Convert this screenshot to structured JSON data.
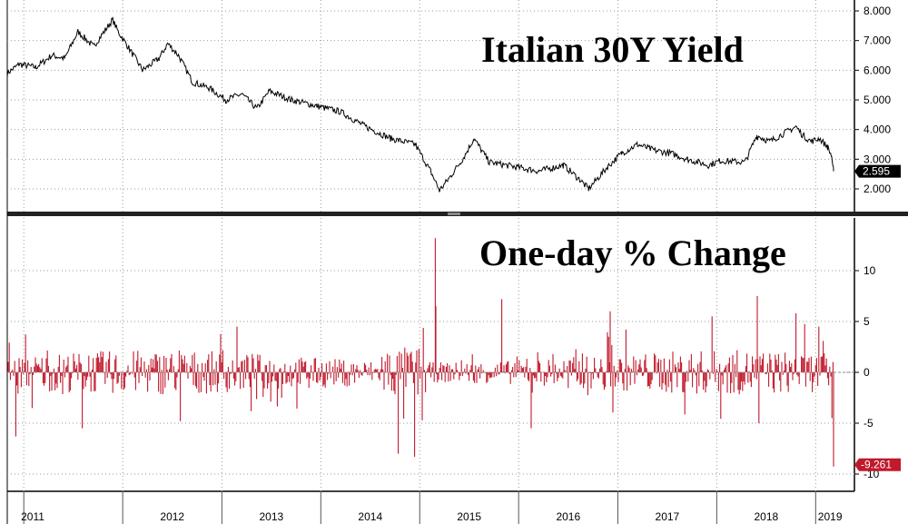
{
  "chart_data": [
    {
      "type": "line",
      "title": "Italian 30Y Yield",
      "x_range": [
        "2010-11-01",
        "2019-03-08"
      ],
      "ylim": [
        1.5,
        8.1
      ],
      "yticks": [
        2.0,
        3.0,
        4.0,
        5.0,
        6.0,
        7.0,
        8.0
      ],
      "ytick_labels": [
        "2.000",
        "3.000",
        "4.000",
        "5.000",
        "6.000",
        "7.000",
        "8.000"
      ],
      "grid": true,
      "axis_side": "right",
      "line_color": "#000000",
      "last_value_label": "2.595",
      "series": [
        {
          "x": [
            "2010-11-01",
            "2010-12-15",
            "2011-02-15",
            "2011-04-15",
            "2011-06-01",
            "2011-07-20",
            "2011-09-15",
            "2011-11-25",
            "2011-12-15",
            "2012-01-20",
            "2012-03-15",
            "2012-05-15",
            "2012-06-15",
            "2012-07-25",
            "2012-09-15",
            "2012-11-15",
            "2013-01-15",
            "2013-03-15",
            "2013-05-10",
            "2013-06-25",
            "2013-09-15",
            "2013-12-15",
            "2014-03-15",
            "2014-06-15",
            "2014-09-15",
            "2014-12-15",
            "2015-02-10",
            "2015-03-15",
            "2015-04-15",
            "2015-06-15",
            "2015-07-20",
            "2015-09-15",
            "2015-12-15",
            "2016-03-15",
            "2016-06-15",
            "2016-08-15",
            "2016-09-15",
            "2016-11-25",
            "2017-01-15",
            "2017-03-15",
            "2017-05-15",
            "2017-07-15",
            "2017-09-15",
            "2017-12-01",
            "2018-01-15",
            "2018-04-15",
            "2018-05-29",
            "2018-07-15",
            "2018-10-20",
            "2018-11-15",
            "2018-12-15",
            "2019-01-15",
            "2019-02-15",
            "2019-03-01",
            "2019-03-08"
          ],
          "values": [
            5.9,
            6.2,
            6.1,
            6.5,
            6.4,
            7.3,
            6.8,
            7.7,
            7.3,
            6.8,
            6.0,
            6.4,
            6.9,
            6.5,
            5.6,
            5.4,
            5.0,
            5.2,
            4.7,
            5.3,
            5.0,
            4.8,
            4.6,
            4.1,
            3.7,
            3.5,
            2.6,
            1.95,
            2.3,
            3.1,
            3.7,
            2.9,
            2.75,
            2.6,
            2.8,
            2.3,
            2.0,
            2.75,
            3.2,
            3.5,
            3.3,
            3.2,
            3.0,
            2.8,
            2.95,
            2.9,
            3.8,
            3.6,
            4.1,
            3.8,
            3.6,
            3.7,
            3.4,
            3.1,
            2.595
          ]
        }
      ]
    },
    {
      "type": "bar",
      "title": "One-day % Change",
      "x_range": [
        "2010-11-01",
        "2019-03-08"
      ],
      "ylim": [
        -10.8,
        15.5
      ],
      "yticks": [
        -10,
        -5,
        0,
        5,
        10
      ],
      "ytick_labels": [
        "-10",
        "-5",
        "0",
        "5",
        "10"
      ],
      "grid": true,
      "axis_side": "right",
      "bar_color": "#c0192b",
      "last_value_label": "-9.261",
      "notable_values": [
        {
          "x": "2010-12-01",
          "y": -6.3
        },
        {
          "x": "2011-08-05",
          "y": -5.5
        },
        {
          "x": "2012-08-03",
          "y": -4.8
        },
        {
          "x": "2014-10-16",
          "y": -8.0
        },
        {
          "x": "2014-12-15",
          "y": -8.3
        },
        {
          "x": "2015-02-25",
          "y": 13.2
        },
        {
          "x": "2015-03-03",
          "y": 6.5
        },
        {
          "x": "2015-11-02",
          "y": 7.2
        },
        {
          "x": "2016-02-15",
          "y": -5.5
        },
        {
          "x": "2016-12-05",
          "y": 6.0
        },
        {
          "x": "2017-12-15",
          "y": 5.5
        },
        {
          "x": "2018-05-29",
          "y": 7.5
        },
        {
          "x": "2018-06-05",
          "y": -5.0
        },
        {
          "x": "2018-10-20",
          "y": 5.8
        },
        {
          "x": "2019-01-15",
          "y": 4.5
        },
        {
          "x": "2019-03-01",
          "y": -4.5
        },
        {
          "x": "2019-03-08",
          "y": -9.261
        }
      ]
    }
  ],
  "x_axis": {
    "labels": [
      "2011",
      "2012",
      "2013",
      "2014",
      "2015",
      "2016",
      "2017",
      "2018",
      "2019"
    ],
    "boundaries": [
      "2011-01-01",
      "2012-01-01",
      "2013-01-01",
      "2014-01-01",
      "2015-01-01",
      "2016-01-01",
      "2017-01-01",
      "2018-01-01",
      "2019-01-01"
    ]
  }
}
